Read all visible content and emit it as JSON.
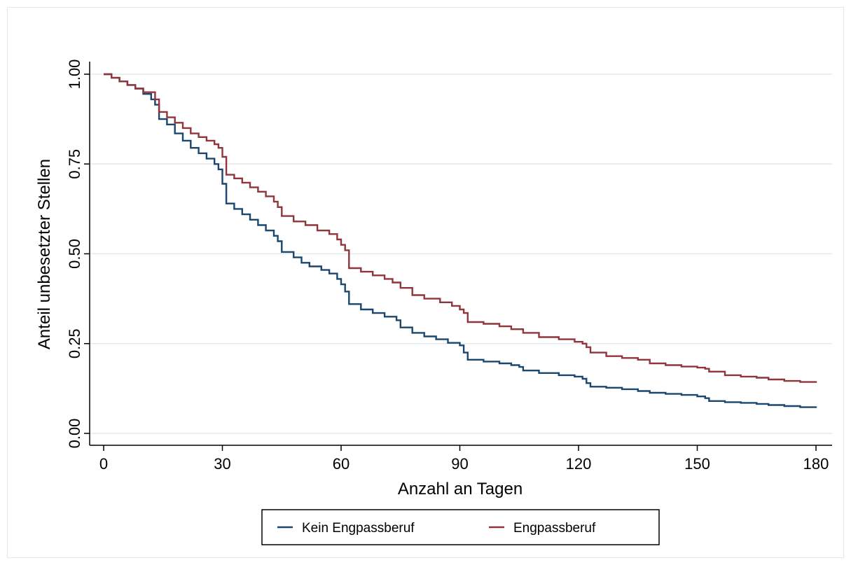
{
  "chart_data": {
    "type": "line",
    "step": true,
    "xlabel": "Anzahl an Tagen",
    "ylabel": "Anteil unbesetzter Stellen",
    "xlim": [
      0,
      180
    ],
    "ylim": [
      0,
      1
    ],
    "xticks": [
      0,
      30,
      60,
      90,
      120,
      150,
      180
    ],
    "xtick_labels": [
      "0",
      "30",
      "60",
      "90",
      "120",
      "150",
      "180"
    ],
    "yticks": [
      0,
      0.25,
      0.5,
      0.75,
      1
    ],
    "ytick_labels": [
      "0.00",
      "0.25",
      "0.50",
      "0.75",
      "1.00"
    ],
    "grid": "horizontal",
    "legend_position": "bottom",
    "series": [
      {
        "name": "Kein Engpassberuf",
        "color": "#1a476f",
        "x": [
          0,
          2,
          4,
          6,
          8,
          10,
          12,
          13,
          14,
          16,
          18,
          20,
          22,
          24,
          26,
          28,
          29,
          30,
          31,
          33,
          35,
          37,
          39,
          41,
          43,
          44,
          45,
          48,
          50,
          52,
          55,
          57,
          59,
          60,
          61,
          62,
          65,
          68,
          71,
          74,
          75,
          78,
          81,
          84,
          87,
          90,
          91,
          92,
          96,
          100,
          103,
          105,
          106,
          110,
          115,
          119,
          121,
          122,
          123,
          127,
          131,
          135,
          138,
          142,
          146,
          150,
          152,
          153,
          157,
          161,
          165,
          168,
          172,
          176,
          180
        ],
        "y": [
          1.0,
          0.99,
          0.98,
          0.97,
          0.96,
          0.945,
          0.93,
          0.915,
          0.875,
          0.86,
          0.835,
          0.815,
          0.795,
          0.78,
          0.765,
          0.75,
          0.735,
          0.695,
          0.64,
          0.625,
          0.61,
          0.595,
          0.58,
          0.565,
          0.55,
          0.535,
          0.505,
          0.49,
          0.475,
          0.465,
          0.455,
          0.445,
          0.43,
          0.415,
          0.395,
          0.36,
          0.345,
          0.335,
          0.325,
          0.315,
          0.295,
          0.28,
          0.27,
          0.262,
          0.252,
          0.245,
          0.225,
          0.205,
          0.2,
          0.195,
          0.19,
          0.185,
          0.175,
          0.168,
          0.162,
          0.158,
          0.152,
          0.14,
          0.13,
          0.127,
          0.123,
          0.118,
          0.113,
          0.11,
          0.107,
          0.103,
          0.098,
          0.09,
          0.087,
          0.085,
          0.082,
          0.079,
          0.076,
          0.073,
          0.071
        ]
      },
      {
        "name": "Engpassberuf",
        "color": "#90353b",
        "x": [
          0,
          2,
          4,
          6,
          8,
          10,
          13,
          14,
          16,
          18,
          20,
          22,
          24,
          26,
          28,
          29,
          30,
          31,
          33,
          35,
          37,
          39,
          41,
          43,
          44,
          45,
          48,
          51,
          54,
          57,
          59,
          60,
          61,
          62,
          65,
          68,
          71,
          73,
          75,
          78,
          81,
          85,
          88,
          90,
          91,
          92,
          96,
          100,
          103,
          106,
          110,
          115,
          119,
          121,
          122,
          123,
          127,
          131,
          135,
          138,
          142,
          146,
          150,
          152,
          153,
          157,
          161,
          165,
          168,
          172,
          176,
          180
        ],
        "y": [
          1.0,
          0.99,
          0.98,
          0.97,
          0.96,
          0.95,
          0.93,
          0.895,
          0.88,
          0.865,
          0.85,
          0.835,
          0.825,
          0.815,
          0.805,
          0.795,
          0.77,
          0.72,
          0.71,
          0.698,
          0.685,
          0.673,
          0.66,
          0.645,
          0.63,
          0.605,
          0.59,
          0.58,
          0.565,
          0.555,
          0.54,
          0.525,
          0.51,
          0.46,
          0.45,
          0.44,
          0.43,
          0.42,
          0.405,
          0.385,
          0.375,
          0.365,
          0.355,
          0.345,
          0.335,
          0.31,
          0.305,
          0.298,
          0.29,
          0.28,
          0.268,
          0.262,
          0.255,
          0.25,
          0.24,
          0.225,
          0.215,
          0.21,
          0.205,
          0.195,
          0.19,
          0.186,
          0.183,
          0.18,
          0.172,
          0.162,
          0.158,
          0.155,
          0.15,
          0.146,
          0.143,
          0.141
        ]
      }
    ]
  }
}
